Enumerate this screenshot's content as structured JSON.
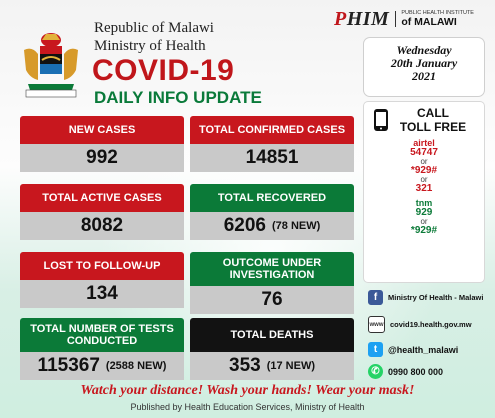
{
  "header": {
    "republic": "Republic of Malawi",
    "ministry": "Ministry of Health",
    "title": "COVID-19",
    "subtitle": "DAILY INFO UPDATE"
  },
  "institute": {
    "mark_p": "P",
    "mark_rest": "HIM",
    "small": "PUBLIC HEALTH INSTITUTE",
    "big": "of MALAWI"
  },
  "date": {
    "weekday": "Wednesday",
    "date": "20th January",
    "year": "2021"
  },
  "stats": {
    "new_cases": {
      "label": "NEW CASES",
      "value": "992"
    },
    "total_confirmed": {
      "label": "TOTAL CONFIRMED CASES",
      "value": "14851"
    },
    "active": {
      "label": "TOTAL ACTIVE CASES",
      "value": "8082"
    },
    "recovered": {
      "label": "TOTAL RECOVERED",
      "value": "6206",
      "extra": "(78 NEW)"
    },
    "lost": {
      "label": "LOST TO FOLLOW-UP",
      "value": "134"
    },
    "outcome": {
      "label": "OUTCOME UNDER INVESTIGATION",
      "value": "76"
    },
    "tests": {
      "label": "TOTAL NUMBER OF TESTS CONDUCTED",
      "value": "115367",
      "extra": "(2588 NEW)"
    },
    "deaths": {
      "label": "TOTAL DEATHS",
      "value": "353",
      "extra": "(17 NEW)"
    }
  },
  "toll": {
    "title1": "CALL",
    "title2": "TOLL FREE",
    "airtel": "airtel",
    "airtel_num1": "54747",
    "or1": "or",
    "airtel_num2": "*929#",
    "or2": "or",
    "airtel_num3": "321",
    "tnm": "tnm",
    "tnm_num1": "929",
    "or3": "or",
    "tnm_num2": "*929#"
  },
  "social": {
    "facebook": "Ministry Of Health - Malawi",
    "website": "covid19.health.gov.mw",
    "twitter": "@health_malawi",
    "whatsapp": "0990 800 000"
  },
  "footer": {
    "slogan": "Watch your distance! Wash your hands! Wear your mask!",
    "published": "Published by Health Education Services, Ministry of Health"
  },
  "colors": {
    "red": "#c8171e",
    "green": "#0b7a38",
    "black": "#121212"
  }
}
